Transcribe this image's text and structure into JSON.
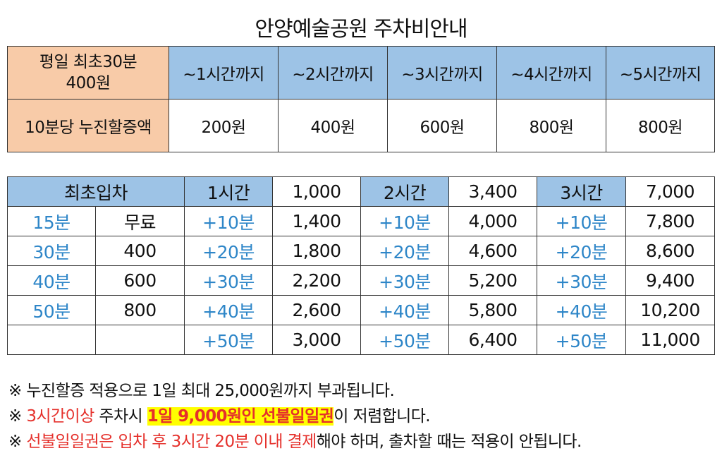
{
  "title": "안양예술공원 주차비안내",
  "rate_table": {
    "base_line1": "평일 최초30분",
    "base_line2": "400원",
    "tiers": [
      "~1시간까지",
      "~2시간까지",
      "~3시간까지",
      "~4시간까지",
      "~5시간까지"
    ],
    "row_label": "10분당 누진할증액",
    "increments": [
      "200원",
      "400원",
      "600원",
      "800원",
      "800원"
    ]
  },
  "time_table": {
    "header": {
      "first_entry": "최초입차",
      "blocks": [
        {
          "label": "1시간",
          "value": "1,000"
        },
        {
          "label": "2시간",
          "value": "3,400"
        },
        {
          "label": "3시간",
          "value": "7,000"
        }
      ]
    },
    "rows": [
      {
        "minutes": "15분",
        "fee": "무료",
        "b1": [
          "+10분",
          "1,400"
        ],
        "b2": [
          "+10분",
          "4,000"
        ],
        "b3": [
          "+10분",
          "7,800"
        ]
      },
      {
        "minutes": "30분",
        "fee": "400",
        "b1": [
          "+20분",
          "1,800"
        ],
        "b2": [
          "+20분",
          "4,600"
        ],
        "b3": [
          "+20분",
          "8,600"
        ]
      },
      {
        "minutes": "40분",
        "fee": "600",
        "b1": [
          "+30분",
          "2,200"
        ],
        "b2": [
          "+30분",
          "5,200"
        ],
        "b3": [
          "+30분",
          "9,400"
        ]
      },
      {
        "minutes": "50분",
        "fee": "800",
        "b1": [
          "+40분",
          "2,600"
        ],
        "b2": [
          "+40분",
          "5,800"
        ],
        "b3": [
          "+40분",
          "10,200"
        ]
      },
      {
        "minutes": "",
        "fee": "",
        "b1": [
          "+50분",
          "3,000"
        ],
        "b2": [
          "+50분",
          "6,400"
        ],
        "b3": [
          "+50분",
          "11,000"
        ]
      }
    ]
  },
  "notes": {
    "n1": "※ 누진할증 적용으로 1일 최대 25,000원까지 부과됩니다.",
    "n2_prefix": "※ ",
    "n2_red": "3시간이상",
    "n2_mid": " 주차시 ",
    "n2_highlight": "1일 9,000원인 선불일일권",
    "n2_suffix": "이 저렴합니다.",
    "n3_prefix": "※ ",
    "n3_red": "선불일일권은 입차 후 3시간 20분 이내 결제",
    "n3_suffix": "해야 하며, 출차할 때는 적용이 안됩니다."
  },
  "colors": {
    "orange": "#f8cba8",
    "blue": "#9dc3e6",
    "teal_text": "#2e86c8",
    "red_text": "#e5302b",
    "highlight": "#ffff00"
  }
}
